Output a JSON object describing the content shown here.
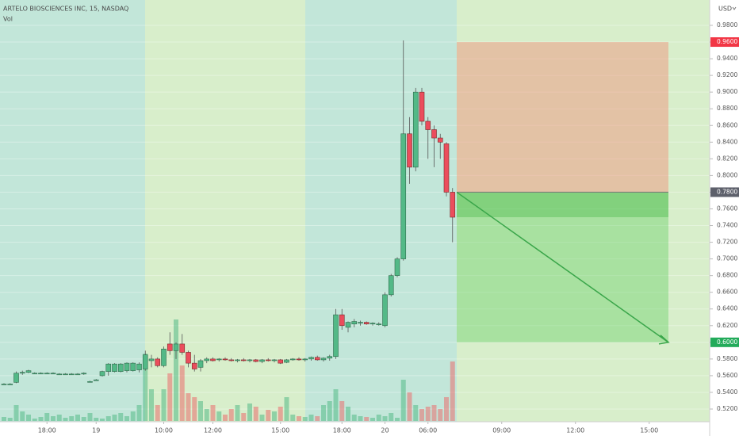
{
  "chart_data": {
    "type": "candlestick",
    "title": "ARTELO BIOSCIENCES INC, 15, NASDAQ",
    "volume_label": "Vol",
    "currency": "USD",
    "categories": [
      null,
      null,
      null,
      null,
      null,
      null,
      null,
      "18:00",
      null,
      null,
      null,
      null,
      null,
      null,
      null,
      "19",
      null,
      null,
      null,
      null,
      null,
      null,
      null,
      null,
      null,
      null,
      "10:00",
      null,
      null,
      null,
      null,
      null,
      null,
      null,
      "12:00",
      null,
      null,
      null,
      null,
      null,
      null,
      null,
      null,
      null,
      null,
      "15:00",
      null,
      null,
      null,
      null,
      null,
      null,
      null,
      null,
      null,
      "18:00",
      null,
      null,
      null,
      null,
      null,
      null,
      "20",
      null,
      null,
      null,
      null,
      null,
      null,
      "06:00",
      null,
      null,
      null,
      null,
      null,
      null,
      null,
      null,
      null,
      null,
      null,
      "09:00",
      null,
      null,
      null,
      null,
      null,
      null,
      null,
      null,
      null,
      null,
      null,
      "12:00",
      null,
      null,
      null,
      null,
      null,
      null,
      null,
      null,
      null,
      null,
      null,
      "15:00",
      null,
      null,
      null,
      null,
      null,
      null,
      null,
      null,
      null
    ],
    "open": [
      0.55,
      0.55,
      0.552,
      0.563,
      0.564,
      0.563,
      0.563,
      0.563,
      0.563,
      0.562,
      0.562,
      0.562,
      0.562,
      0.562,
      0.553,
      0.555,
      0.56,
      0.565,
      0.565,
      0.565,
      0.566,
      0.566,
      0.567,
      0.568,
      0.578,
      0.58,
      0.572,
      0.598,
      0.59,
      0.598,
      0.588,
      0.575,
      0.57,
      0.578,
      0.58,
      0.579,
      0.58,
      0.579,
      0.578,
      0.579,
      0.578,
      0.579,
      0.577,
      0.579,
      0.578,
      0.579,
      0.576,
      0.579,
      0.58,
      0.579,
      0.58,
      0.582,
      0.579,
      0.581,
      0.583,
      0.633,
      0.618,
      0.622,
      0.623,
      0.624,
      0.622,
      0.621,
      0.62,
      0.657,
      0.68,
      0.7,
      0.85,
      0.81,
      0.9,
      0.865,
      0.855,
      0.845,
      0.838,
      0.78,
      null,
      null,
      null,
      null,
      null,
      null,
      null,
      null,
      null,
      null,
      null,
      null,
      null,
      null,
      null,
      null,
      null,
      null,
      null,
      null,
      null,
      null,
      null,
      null,
      null,
      null,
      null,
      null,
      null,
      null,
      null,
      null,
      null,
      null,
      null,
      null,
      null,
      null,
      null,
      null,
      null
    ],
    "high": [
      0.551,
      0.551,
      0.565,
      0.566,
      0.567,
      0.564,
      0.564,
      0.564,
      0.564,
      0.563,
      0.563,
      0.563,
      0.563,
      0.564,
      0.554,
      0.556,
      0.566,
      0.575,
      0.575,
      0.575,
      0.576,
      0.576,
      0.576,
      0.59,
      0.585,
      0.582,
      0.595,
      0.612,
      0.6,
      0.61,
      0.59,
      0.585,
      0.58,
      0.582,
      0.582,
      0.581,
      0.582,
      0.581,
      0.58,
      0.581,
      0.58,
      0.58,
      0.58,
      0.581,
      0.58,
      0.58,
      0.58,
      0.581,
      0.582,
      0.581,
      0.583,
      0.584,
      0.582,
      0.585,
      0.64,
      0.64,
      0.625,
      0.628,
      0.626,
      0.625,
      0.624,
      0.624,
      0.66,
      0.682,
      0.702,
      0.962,
      0.87,
      0.905,
      0.905,
      0.87,
      0.86,
      0.85,
      0.84,
      0.785,
      null,
      null,
      null,
      null,
      null,
      null,
      null,
      null,
      null,
      null,
      null,
      null,
      null,
      null,
      null,
      null,
      null,
      null,
      null,
      null,
      null,
      null,
      null,
      null,
      null,
      null,
      null,
      null,
      null,
      null,
      null,
      null,
      null,
      null,
      null,
      null,
      null,
      null,
      null,
      null,
      null
    ],
    "low": [
      0.549,
      0.549,
      0.551,
      0.561,
      0.563,
      0.562,
      0.562,
      0.562,
      0.562,
      0.561,
      0.561,
      0.561,
      0.561,
      0.561,
      0.552,
      0.554,
      0.559,
      0.56,
      0.564,
      0.564,
      0.564,
      0.565,
      0.564,
      0.566,
      0.57,
      0.57,
      0.57,
      0.585,
      0.58,
      0.585,
      0.57,
      0.565,
      0.565,
      0.575,
      0.577,
      0.577,
      0.578,
      0.577,
      0.576,
      0.577,
      0.576,
      0.576,
      0.575,
      0.577,
      0.576,
      0.574,
      0.575,
      0.578,
      0.578,
      0.577,
      0.578,
      0.578,
      0.577,
      0.578,
      0.58,
      0.615,
      0.612,
      0.618,
      0.62,
      0.621,
      0.62,
      0.62,
      0.618,
      0.655,
      0.678,
      0.698,
      0.79,
      0.805,
      0.86,
      0.82,
      0.81,
      0.82,
      0.775,
      0.72,
      null,
      null,
      null,
      null,
      null,
      null,
      null,
      null,
      null,
      null,
      null,
      null,
      null,
      null,
      null,
      null,
      null,
      null,
      null,
      null,
      null,
      null,
      null,
      null,
      null,
      null,
      null,
      null,
      null,
      null,
      null,
      null,
      null,
      null,
      null,
      null,
      null,
      null,
      null,
      null,
      null
    ],
    "close": [
      0.55,
      0.55,
      0.563,
      0.564,
      0.566,
      0.563,
      0.563,
      0.563,
      0.563,
      0.562,
      0.562,
      0.562,
      0.562,
      0.563,
      0.553,
      0.555,
      0.565,
      0.574,
      0.574,
      0.574,
      0.575,
      0.575,
      0.574,
      0.585,
      0.58,
      0.572,
      0.592,
      0.59,
      0.598,
      0.588,
      0.575,
      0.568,
      0.578,
      0.58,
      0.578,
      0.58,
      0.579,
      0.578,
      0.579,
      0.578,
      0.579,
      0.577,
      0.579,
      0.578,
      0.579,
      0.575,
      0.579,
      0.58,
      0.579,
      0.58,
      0.582,
      0.579,
      0.581,
      0.583,
      0.633,
      0.62,
      0.624,
      0.625,
      0.624,
      0.622,
      0.623,
      0.622,
      0.657,
      0.68,
      0.7,
      0.85,
      0.81,
      0.9,
      0.865,
      0.855,
      0.845,
      0.84,
      0.78,
      0.75,
      null,
      null,
      null,
      null,
      null,
      null,
      null,
      null,
      null,
      null,
      null,
      null,
      null,
      null,
      null,
      null,
      null,
      null,
      null,
      null,
      null,
      null,
      null,
      null,
      null,
      null,
      null,
      null,
      null,
      null,
      null,
      null,
      null,
      null,
      null,
      null,
      null,
      null,
      null,
      null,
      null
    ],
    "volume": [
      5,
      4,
      20,
      12,
      8,
      3,
      5,
      10,
      6,
      8,
      4,
      6,
      8,
      5,
      10,
      4,
      3,
      6,
      8,
      10,
      6,
      12,
      20,
      85,
      40,
      20,
      40,
      60,
      128,
      70,
      35,
      30,
      25,
      15,
      20,
      12,
      8,
      15,
      20,
      10,
      22,
      18,
      8,
      14,
      12,
      18,
      30,
      8,
      6,
      5,
      8,
      6,
      20,
      25,
      40,
      25,
      18,
      8,
      6,
      5,
      4,
      8,
      6,
      10,
      4,
      52,
      36,
      20,
      15,
      18,
      20,
      15,
      30,
      75,
      null,
      null,
      null,
      null,
      null,
      null,
      null,
      null,
      null,
      null,
      null,
      null,
      null,
      null,
      null,
      null,
      null,
      null,
      null,
      null,
      null,
      null,
      null,
      null,
      null,
      null,
      null,
      null,
      null,
      null,
      null,
      null,
      null,
      null,
      null,
      null,
      null,
      null,
      null,
      null,
      null
    ],
    "up_color": "#53b987",
    "down_color": "#eb4d5c",
    "ylim": [
      0.5,
      0.99
    ],
    "yticks": [
      {
        "value": 0.52,
        "label": "0.5200"
      },
      {
        "value": 0.54,
        "label": "0.5400"
      },
      {
        "value": 0.56,
        "label": "0.5600"
      },
      {
        "value": 0.58,
        "label": "0.5800"
      },
      {
        "value": 0.6,
        "label": "0.6000"
      },
      {
        "value": 0.62,
        "label": "0.6200"
      },
      {
        "value": 0.64,
        "label": "0.6400"
      },
      {
        "value": 0.66,
        "label": "0.6600"
      },
      {
        "value": 0.68,
        "label": "0.6800"
      },
      {
        "value": 0.7,
        "label": "0.7000"
      },
      {
        "value": 0.72,
        "label": "0.7200"
      },
      {
        "value": 0.74,
        "label": "0.7400"
      },
      {
        "value": 0.76,
        "label": "0.7600"
      },
      {
        "value": 0.78,
        "label": "0.7800"
      },
      {
        "value": 0.8,
        "label": "0.8000"
      },
      {
        "value": 0.82,
        "label": "0.8200"
      },
      {
        "value": 0.84,
        "label": "0.8400"
      },
      {
        "value": 0.86,
        "label": "0.8600"
      },
      {
        "value": 0.88,
        "label": "0.8800"
      },
      {
        "value": 0.9,
        "label": "0.9000"
      },
      {
        "value": 0.92,
        "label": "0.9200"
      },
      {
        "value": 0.94,
        "label": "0.9400"
      },
      {
        "value": 0.96,
        "label": "0.9600"
      },
      {
        "value": 0.98,
        "label": "0.9800"
      }
    ],
    "position": {
      "stop": {
        "value": 0.96,
        "label": "0.9600",
        "color": "#f23645"
      },
      "entry": {
        "value": 0.78,
        "label": "0.7800",
        "color": "#5d606b"
      },
      "target": {
        "value": 0.6,
        "label": "0.6000",
        "color": "#22ab5a"
      }
    },
    "grid": true
  }
}
